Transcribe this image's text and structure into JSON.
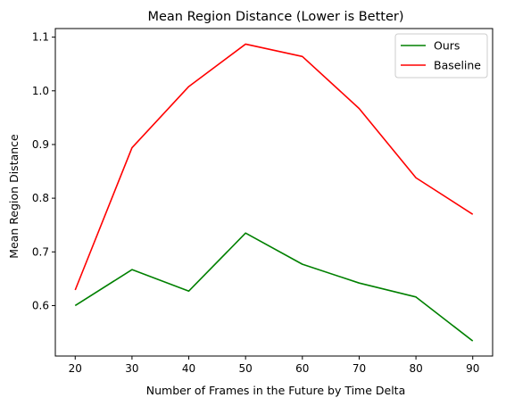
{
  "chart_data": {
    "type": "line",
    "title": "Mean Region Distance (Lower is Better)",
    "xlabel": "Number of Frames in the Future by Time Delta",
    "ylabel": "Mean Region Distance",
    "x": [
      20,
      30,
      40,
      50,
      60,
      70,
      80,
      90
    ],
    "xticks": [
      20,
      30,
      40,
      50,
      60,
      70,
      80,
      90
    ],
    "yticks": [
      0.6,
      0.7,
      0.8,
      0.9,
      1.0,
      1.1
    ],
    "ytick_labels": [
      "0.6",
      "0.7",
      "0.8",
      "0.9",
      "1.0",
      "1.1"
    ],
    "xlim": [
      16.5,
      93.5
    ],
    "ylim": [
      0.506,
      1.116
    ],
    "grid": false,
    "legend_position": "upper-right",
    "series": [
      {
        "name": "Ours",
        "color": "#008000",
        "values": [
          0.6,
          0.667,
          0.627,
          0.735,
          0.677,
          0.642,
          0.616,
          0.534
        ]
      },
      {
        "name": "Baseline",
        "color": "#ff0000",
        "values": [
          0.629,
          0.894,
          1.008,
          1.087,
          1.064,
          0.967,
          0.838,
          0.77
        ]
      }
    ]
  }
}
